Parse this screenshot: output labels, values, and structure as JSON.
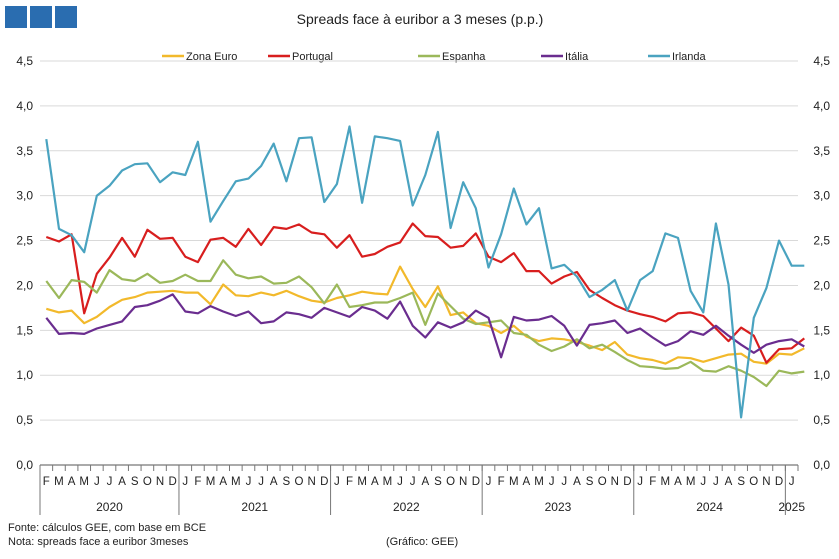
{
  "chart_data": {
    "type": "line",
    "title": "Spreads face à euribor a 3 meses (p.p.)",
    "ylim": [
      0,
      4.5
    ],
    "yticks": [
      "0,0",
      "0,5",
      "1,0",
      "1,5",
      "2,0",
      "2,5",
      "3,0",
      "3,5",
      "4,0",
      "4,5"
    ],
    "month_letters": [
      "F",
      "M",
      "A",
      "M",
      "J",
      "J",
      "A",
      "S",
      "O",
      "N",
      "D",
      "J",
      "F",
      "M",
      "A",
      "M",
      "J",
      "J",
      "A",
      "S",
      "O",
      "N",
      "D",
      "J",
      "F",
      "M",
      "A",
      "M",
      "J",
      "J",
      "A",
      "S",
      "O",
      "N",
      "D",
      "J",
      "F",
      "M",
      "A",
      "M",
      "J",
      "J",
      "A",
      "S",
      "O",
      "N",
      "D",
      "J",
      "F",
      "M",
      "A",
      "M",
      "J",
      "J",
      "A",
      "S",
      "O",
      "N",
      "D",
      "J"
    ],
    "years": [
      "2020",
      "2021",
      "2022",
      "2023",
      "2024",
      "2025"
    ],
    "series": [
      {
        "name": "Zona Euro",
        "color": "#f2b92b",
        "values": [
          1.74,
          1.7,
          1.72,
          1.58,
          1.65,
          1.76,
          1.84,
          1.87,
          1.92,
          1.93,
          1.94,
          1.92,
          1.92,
          1.79,
          2.01,
          1.89,
          1.88,
          1.92,
          1.89,
          1.94,
          1.88,
          1.83,
          1.81,
          1.86,
          1.89,
          1.93,
          1.91,
          1.9,
          2.21,
          1.96,
          1.76,
          1.99,
          1.67,
          1.7,
          1.58,
          1.55,
          1.47,
          1.55,
          1.43,
          1.38,
          1.41,
          1.4,
          1.37,
          1.33,
          1.28,
          1.37,
          1.23,
          1.19,
          1.17,
          1.13,
          1.2,
          1.19,
          1.15,
          1.19,
          1.23,
          1.24,
          1.15,
          1.13,
          1.24,
          1.23,
          1.3
        ]
      },
      {
        "name": "Portugal",
        "color": "#d81e1e",
        "values": [
          2.54,
          2.49,
          2.57,
          1.69,
          2.13,
          2.31,
          2.53,
          2.32,
          2.62,
          2.52,
          2.53,
          2.32,
          2.26,
          2.51,
          2.53,
          2.43,
          2.63,
          2.45,
          2.65,
          2.63,
          2.68,
          2.59,
          2.57,
          2.42,
          2.56,
          2.32,
          2.35,
          2.43,
          2.48,
          2.69,
          2.55,
          2.54,
          2.42,
          2.44,
          2.58,
          2.32,
          2.26,
          2.36,
          2.16,
          2.16,
          2.02,
          2.1,
          2.15,
          1.95,
          1.86,
          1.78,
          1.72,
          1.68,
          1.65,
          1.6,
          1.69,
          1.7,
          1.66,
          1.52,
          1.38,
          1.53,
          1.44,
          1.14,
          1.29,
          1.3,
          1.41
        ]
      },
      {
        "name": "Espanha",
        "color": "#9bb85a",
        "values": [
          2.05,
          1.86,
          2.06,
          2.04,
          1.92,
          2.17,
          2.07,
          2.05,
          2.13,
          2.03,
          2.05,
          2.12,
          2.05,
          2.05,
          2.28,
          2.12,
          2.08,
          2.1,
          2.02,
          2.03,
          2.1,
          1.98,
          1.8,
          2.01,
          1.76,
          1.78,
          1.81,
          1.81,
          1.86,
          1.92,
          1.56,
          1.91,
          1.77,
          1.63,
          1.57,
          1.59,
          1.61,
          1.47,
          1.45,
          1.34,
          1.27,
          1.32,
          1.4,
          1.3,
          1.34,
          1.26,
          1.17,
          1.1,
          1.09,
          1.07,
          1.08,
          1.15,
          1.05,
          1.04,
          1.1,
          1.05,
          0.98,
          0.88,
          1.05,
          1.02,
          1.04
        ]
      },
      {
        "name": "Itália",
        "color": "#6a2d8f",
        "values": [
          1.64,
          1.46,
          1.47,
          1.46,
          1.52,
          1.56,
          1.6,
          1.76,
          1.78,
          1.83,
          1.9,
          1.71,
          1.69,
          1.77,
          1.71,
          1.66,
          1.71,
          1.58,
          1.6,
          1.7,
          1.68,
          1.64,
          1.75,
          1.7,
          1.65,
          1.76,
          1.72,
          1.63,
          1.82,
          1.55,
          1.42,
          1.59,
          1.53,
          1.59,
          1.72,
          1.64,
          1.2,
          1.65,
          1.61,
          1.62,
          1.66,
          1.55,
          1.33,
          1.56,
          1.58,
          1.61,
          1.47,
          1.52,
          1.42,
          1.33,
          1.38,
          1.49,
          1.45,
          1.55,
          1.44,
          1.34,
          1.25,
          1.34,
          1.38,
          1.4,
          1.32
        ]
      },
      {
        "name": "Irlanda",
        "color": "#4aa3c0",
        "values": [
          3.63,
          2.63,
          2.56,
          2.37,
          3.0,
          3.11,
          3.28,
          3.35,
          3.36,
          3.15,
          3.26,
          3.23,
          3.6,
          2.71,
          2.94,
          3.16,
          3.19,
          3.33,
          3.58,
          3.16,
          3.64,
          3.65,
          2.93,
          3.13,
          3.77,
          2.92,
          3.66,
          3.64,
          3.61,
          2.89,
          3.23,
          3.71,
          2.64,
          3.15,
          2.86,
          2.2,
          2.57,
          3.08,
          2.68,
          2.86,
          2.19,
          2.23,
          2.1,
          1.87,
          1.95,
          2.06,
          1.72,
          2.06,
          2.16,
          2.58,
          2.53,
          1.94,
          1.7,
          2.69,
          2.01,
          0.53,
          1.64,
          1.97,
          2.5,
          2.22,
          2.22
        ]
      }
    ]
  },
  "notes": {
    "source": "Fonte: cálculos GEE, com base em BCE",
    "note": "Nota: spreads face a euribor 3meses",
    "credit": "(Gráfico: GEE)"
  }
}
